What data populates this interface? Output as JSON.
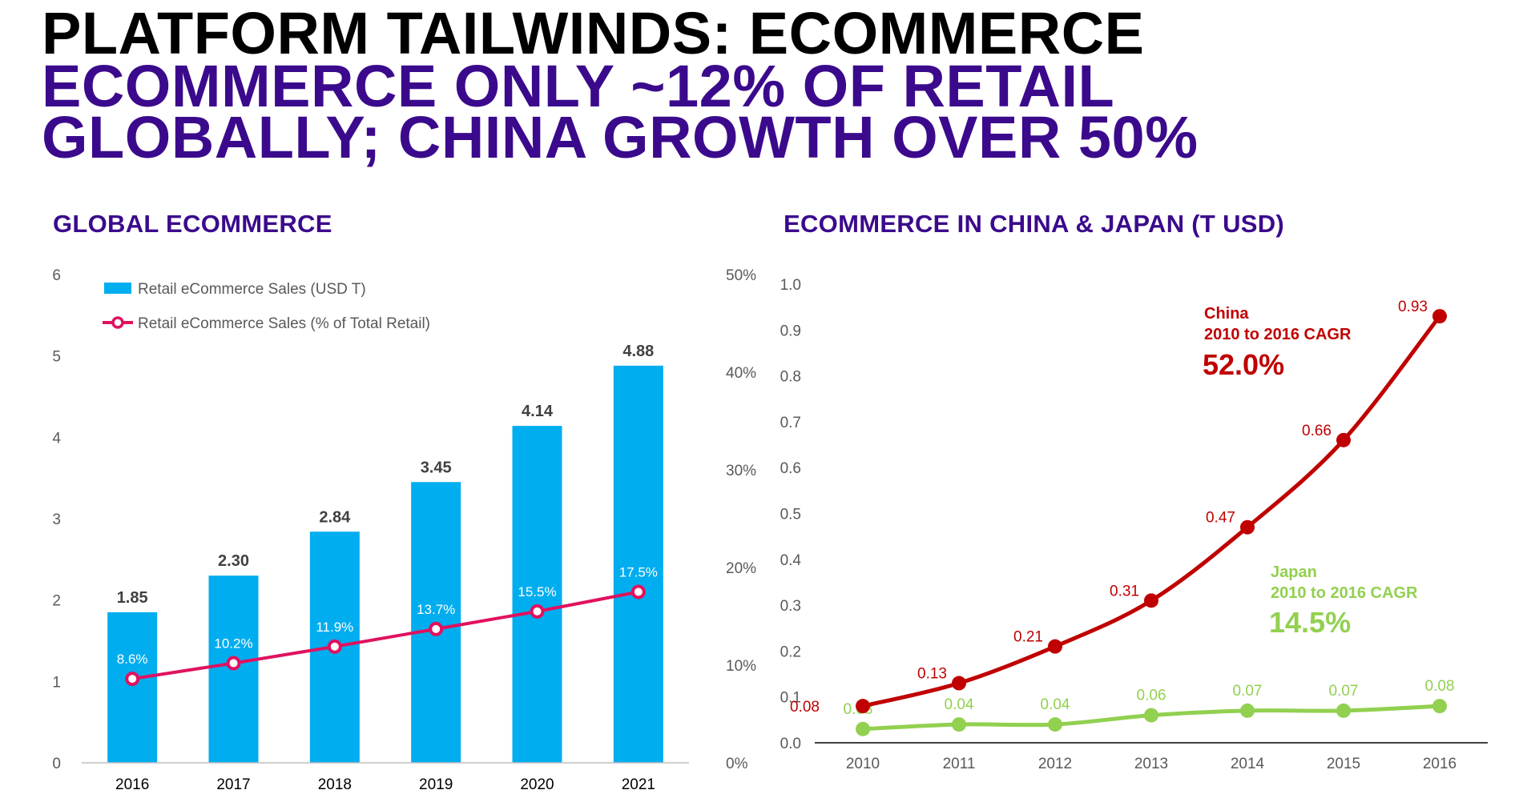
{
  "header": {
    "line1": "PLATFORM TAILWINDS: ECOMMERCE",
    "line2": "ECOMMERCE ONLY ~12% OF RETAIL",
    "line3": "GLOBALLY; CHINA GROWTH OVER 50%"
  },
  "colors": {
    "title_black": "#000000",
    "title_purple": "#3b0a8c",
    "bar_blue": "#00adef",
    "pct_line": "#e0115f",
    "china": "#c00000",
    "japan": "#92d050"
  },
  "chart_data": [
    {
      "type": "bar",
      "title": "GLOBAL ECOMMERCE",
      "categories": [
        "2016",
        "2017",
        "2018",
        "2019",
        "2020",
        "2021"
      ],
      "series": [
        {
          "name": "Retail eCommerce Sales (USD T)",
          "type": "bar",
          "axis": "left",
          "values": [
            1.85,
            2.3,
            2.84,
            3.45,
            4.14,
            4.88
          ],
          "labels": [
            "1.85",
            "2.30",
            "2.84",
            "3.45",
            "4.14",
            "4.88"
          ]
        },
        {
          "name": "Retail eCommerce Sales (% of Total Retail)",
          "type": "line",
          "axis": "right",
          "values": [
            8.6,
            10.2,
            11.9,
            13.7,
            15.5,
            17.5
          ],
          "labels": [
            "8.6%",
            "10.2%",
            "11.9%",
            "13.7%",
            "15.5%",
            "17.5%"
          ]
        }
      ],
      "ylim": [
        0,
        6
      ],
      "y_ticks": [
        "0",
        "1",
        "2",
        "3",
        "4",
        "5",
        "6"
      ],
      "y2lim": [
        0,
        50
      ],
      "y2_ticks": [
        "0%",
        "10%",
        "20%",
        "30%",
        "40%",
        "50%"
      ],
      "legend": "top-left",
      "grid": false
    },
    {
      "type": "line",
      "title": "ECOMMERCE IN CHINA & JAPAN (T USD)",
      "x": [
        "2010",
        "2011",
        "2012",
        "2013",
        "2014",
        "2015",
        "2016"
      ],
      "series": [
        {
          "name": "China",
          "values": [
            0.08,
            0.13,
            0.21,
            0.31,
            0.47,
            0.66,
            0.93
          ],
          "labels": [
            "0.08",
            "0.13",
            "0.21",
            "0.31",
            "0.47",
            "0.66",
            "0.93"
          ]
        },
        {
          "name": "Japan",
          "values": [
            0.03,
            0.04,
            0.04,
            0.06,
            0.07,
            0.07,
            0.08
          ],
          "labels": [
            "0.03",
            "0.04",
            "0.04",
            "0.06",
            "0.07",
            "0.07",
            "0.08"
          ]
        }
      ],
      "ylim": [
        0,
        1.0
      ],
      "y_ticks": [
        "0.0",
        "0.1",
        "0.2",
        "0.3",
        "0.4",
        "0.5",
        "0.6",
        "0.7",
        "0.8",
        "0.9",
        "1.0"
      ],
      "annotations": [
        {
          "series": "China",
          "line1": "China",
          "line2": "2010 to 2016 CAGR",
          "value": "52.0%"
        },
        {
          "series": "Japan",
          "line1": "Japan",
          "line2": "2010 to 2016 CAGR",
          "value": "14.5%"
        }
      ],
      "grid": false
    }
  ]
}
